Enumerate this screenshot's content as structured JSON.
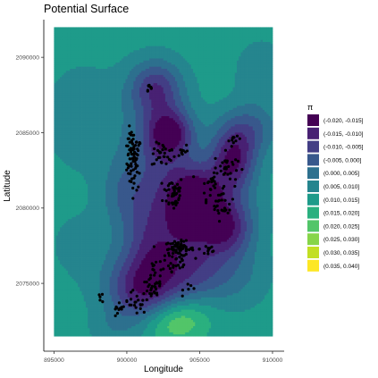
{
  "chart_data": {
    "type": "contour",
    "title": "Potential Surface",
    "xlabel": "Longitude",
    "ylabel": "Latitude",
    "xlim": [
      894300,
      910800
    ],
    "ylim": [
      2070500,
      2092500
    ],
    "x_ticks": [
      895000,
      900000,
      905000,
      910000
    ],
    "x_tick_labels": [
      "895000",
      "900000",
      "905000",
      "910000"
    ],
    "y_ticks": [
      2075000,
      2080000,
      2085000,
      2090000
    ],
    "y_tick_labels": [
      "2075000",
      "2080000",
      "2085000",
      "2090000"
    ],
    "grid": false,
    "legend": {
      "title": "π",
      "position": "right",
      "items": [
        {
          "label": "(-0.020, -0.015]",
          "color": "#440154"
        },
        {
          "label": "(-0.015, -0.010]",
          "color": "#482173"
        },
        {
          "label": "(-0.010, -0.005]",
          "color": "#433e85"
        },
        {
          "label": "(-0.005, 0.000]",
          "color": "#38588c"
        },
        {
          "label": "(0.000, 0.005]",
          "color": "#2d708e"
        },
        {
          "label": "(0.005, 0.010]",
          "color": "#25858e"
        },
        {
          "label": "(0.010, 0.015]",
          "color": "#1e9b8a"
        },
        {
          "label": "(0.015, 0.020]",
          "color": "#2ab07f"
        },
        {
          "label": "(0.020, 0.025]",
          "color": "#52c569"
        },
        {
          "label": "(0.025, 0.030]",
          "color": "#86d549"
        },
        {
          "label": "(0.030, 0.035]",
          "color": "#c2df23"
        },
        {
          "label": "(0.035, 0.040]",
          "color": "#fde725"
        }
      ]
    },
    "surface_extent": {
      "x": [
        895000,
        910000
      ],
      "y": [
        2071500,
        2092000
      ]
    },
    "surface_features": [
      {
        "x": 900800,
        "y": 2074500,
        "sx": 1700,
        "sy": 1600,
        "v": -0.011
      },
      {
        "x": 901700,
        "y": 2077800,
        "sx": 1500,
        "sy": 2400,
        "v": -0.005
      },
      {
        "x": 902000,
        "y": 2083000,
        "sx": 1700,
        "sy": 3000,
        "v": -0.004
      },
      {
        "x": 902000,
        "y": 2088000,
        "sx": 1300,
        "sy": 1300,
        "v": -0.009
      },
      {
        "x": 903000,
        "y": 2085000,
        "sx": 1100,
        "sy": 1100,
        "v": -0.014
      },
      {
        "x": 904500,
        "y": 2080500,
        "sx": 1200,
        "sy": 1600,
        "v": -0.015
      },
      {
        "x": 904500,
        "y": 2076000,
        "sx": 2000,
        "sy": 1800,
        "v": -0.008
      },
      {
        "x": 906200,
        "y": 2080200,
        "sx": 1800,
        "sy": 1800,
        "v": -0.007
      },
      {
        "x": 907300,
        "y": 2083200,
        "sx": 1100,
        "sy": 1300,
        "v": -0.013
      },
      {
        "x": 907000,
        "y": 2078500,
        "sx": 1200,
        "sy": 1200,
        "v": -0.004
      },
      {
        "x": 908200,
        "y": 2085200,
        "sx": 1500,
        "sy": 1200,
        "v": -0.004
      },
      {
        "x": 903200,
        "y": 2072500,
        "sx": 1500,
        "sy": 1000,
        "v": 0.028
      },
      {
        "x": 904800,
        "y": 2073200,
        "sx": 1200,
        "sy": 900,
        "v": 0.016
      },
      {
        "x": 899000,
        "y": 2072000,
        "sx": 1200,
        "sy": 800,
        "v": 0.008
      },
      {
        "x": 896800,
        "y": 2077500,
        "sx": 1700,
        "sy": 1800,
        "v": 0.008
      },
      {
        "x": 897000,
        "y": 2086000,
        "sx": 2000,
        "sy": 2600,
        "v": 0.006
      },
      {
        "x": 899500,
        "y": 2081000,
        "sx": 1000,
        "sy": 1500,
        "v": 0.005
      },
      {
        "x": 908000,
        "y": 2075500,
        "sx": 1500,
        "sy": 1500,
        "v": 0.007
      },
      {
        "x": 909200,
        "y": 2089000,
        "sx": 1200,
        "sy": 1500,
        "v": 0.005
      }
    ],
    "points_clusters": [
      {
        "x": 900500,
        "y": 2083000,
        "sx": 250,
        "sy": 900,
        "n": 60
      },
      {
        "x": 900300,
        "y": 2084200,
        "sx": 200,
        "sy": 500,
        "n": 20
      },
      {
        "x": 901500,
        "y": 2088000,
        "sx": 150,
        "sy": 200,
        "n": 8
      },
      {
        "x": 902500,
        "y": 2083500,
        "sx": 400,
        "sy": 400,
        "n": 30
      },
      {
        "x": 903200,
        "y": 2081000,
        "sx": 350,
        "sy": 600,
        "n": 45
      },
      {
        "x": 903800,
        "y": 2083800,
        "sx": 200,
        "sy": 250,
        "n": 10
      },
      {
        "x": 905800,
        "y": 2081500,
        "sx": 350,
        "sy": 500,
        "n": 25
      },
      {
        "x": 906800,
        "y": 2082700,
        "sx": 400,
        "sy": 500,
        "n": 30
      },
      {
        "x": 906600,
        "y": 2080400,
        "sx": 400,
        "sy": 600,
        "n": 25
      },
      {
        "x": 907400,
        "y": 2084500,
        "sx": 200,
        "sy": 120,
        "n": 10
      },
      {
        "x": 903600,
        "y": 2077300,
        "sx": 500,
        "sy": 250,
        "n": 70
      },
      {
        "x": 903300,
        "y": 2076200,
        "sx": 500,
        "sy": 400,
        "n": 20
      },
      {
        "x": 905600,
        "y": 2077300,
        "sx": 300,
        "sy": 300,
        "n": 12
      },
      {
        "x": 902000,
        "y": 2075800,
        "sx": 300,
        "sy": 500,
        "n": 15
      },
      {
        "x": 901700,
        "y": 2074500,
        "sx": 350,
        "sy": 400,
        "n": 25
      },
      {
        "x": 900600,
        "y": 2073700,
        "sx": 400,
        "sy": 400,
        "n": 22
      },
      {
        "x": 899400,
        "y": 2073100,
        "sx": 250,
        "sy": 250,
        "n": 10
      },
      {
        "x": 898200,
        "y": 2074000,
        "sx": 150,
        "sy": 200,
        "n": 5
      },
      {
        "x": 904500,
        "y": 2074800,
        "sx": 300,
        "sy": 250,
        "n": 6
      }
    ]
  }
}
